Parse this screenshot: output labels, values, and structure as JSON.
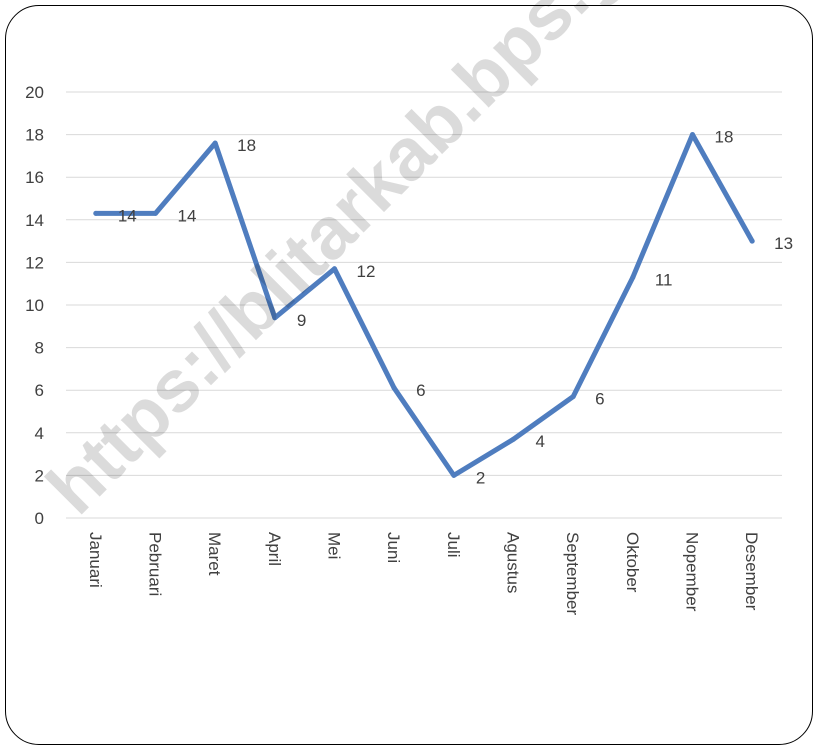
{
  "chart_data": {
    "type": "line",
    "categories": [
      "Januari",
      "Pebruari",
      "Maret",
      "April",
      "Mei",
      "Juni",
      "Juli",
      "Agustus",
      "September",
      "Oktober",
      "Nopember",
      "Desember"
    ],
    "series": [
      {
        "values": [
          14.3,
          14.3,
          17.6,
          9.4,
          11.7,
          6.1,
          2.0,
          3.7,
          5.7,
          11.3,
          18.0,
          13.0
        ],
        "labels": [
          "14",
          "14",
          "18",
          "9",
          "12",
          "6",
          "2",
          "4",
          "6",
          "11",
          "18",
          "13"
        ],
        "color": "#4F7DBF"
      }
    ],
    "ylim": [
      0,
      20
    ],
    "yticks": [
      "0",
      "2",
      "4",
      "6",
      "8",
      "10",
      "12",
      "14",
      "16",
      "18",
      "20"
    ],
    "grid": true,
    "legend": "none",
    "title": "",
    "xlabel": "",
    "ylabel": ""
  },
  "watermark": "https://blitarkab.bps.go.id",
  "colors": {
    "line": "#4F7DBF",
    "grid": "#D9D9D9",
    "text": "#404040",
    "frame": "#000000"
  }
}
